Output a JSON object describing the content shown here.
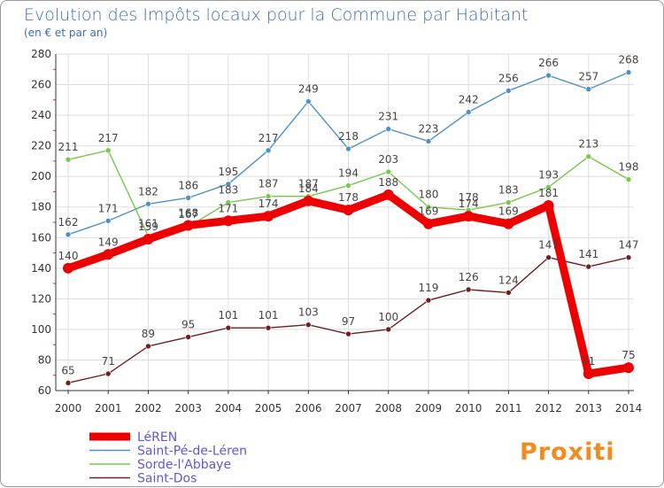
{
  "chart_data": {
    "type": "line",
    "title": "Evolution des Impôts locaux pour la Commune par Habitant",
    "subtitle": "(en € et par an)",
    "x": [
      "2000",
      "2001",
      "2002",
      "2003",
      "2004",
      "2005",
      "2006",
      "2007",
      "2008",
      "2009",
      "2010",
      "2011",
      "2012",
      "2013",
      "2014"
    ],
    "ylim": [
      60,
      280
    ],
    "yticks": [
      60,
      80,
      100,
      120,
      140,
      160,
      180,
      200,
      220,
      240,
      260,
      280
    ],
    "grid": true,
    "legend_position": "bottom-left",
    "series": [
      {
        "name": "LéREN",
        "color": "#ee0000",
        "emphasis": true,
        "values": [
          140,
          149,
          159,
          168,
          171,
          174,
          184,
          178,
          188,
          169,
          174,
          169,
          181,
          71,
          75
        ]
      },
      {
        "name": "Saint-Pé-de-Léren",
        "color": "#4f91c6",
        "emphasis": false,
        "values": [
          162,
          171,
          182,
          186,
          195,
          217,
          249,
          218,
          231,
          223,
          242,
          256,
          266,
          257,
          268
        ]
      },
      {
        "name": "Sorde-l'Abbaye",
        "color": "#77c84c",
        "emphasis": false,
        "values": [
          211,
          217,
          161,
          167,
          183,
          187,
          187,
          194,
          203,
          180,
          178,
          183,
          193,
          213,
          198
        ]
      },
      {
        "name": "Saint-Dos",
        "color": "#6e1f22",
        "emphasis": false,
        "values": [
          65,
          71,
          89,
          95,
          101,
          101,
          103,
          97,
          100,
          119,
          126,
          124,
          147,
          141,
          147
        ]
      }
    ]
  },
  "brand": {
    "logo_text": "Proxiti"
  },
  "colors": {
    "title": "#3a6fb7",
    "legend_text": "#5a5ad8",
    "axis": "#333333",
    "grid": "#dddddd"
  }
}
